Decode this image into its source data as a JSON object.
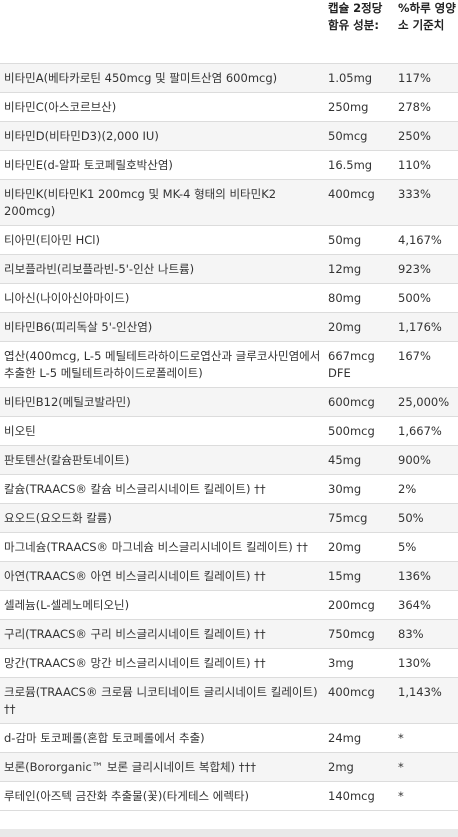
{
  "table": {
    "headers": [
      "",
      "캡슐 2정당 함유 성분:",
      "%하루 영양소 기준치"
    ],
    "rows": [
      {
        "name": "비타민A(베타카로틴 450mcg 및 팔미트산염 600mcg)",
        "amount": "1.05mg",
        "dv": "117%"
      },
      {
        "name": "비타민C(아스코르브산)",
        "amount": "250mg",
        "dv": "278%"
      },
      {
        "name": "비타민D(비타민D3)(2,000 IU)",
        "amount": "50mcg",
        "dv": "250%"
      },
      {
        "name": "비타민E(d-알파 토코페릴호박산염)",
        "amount": "16.5mg",
        "dv": "110%"
      },
      {
        "name": "비타민K(비타민K1 200mcg 및 MK-4 형태의 비타민K2 200mcg)",
        "amount": "400mcg",
        "dv": "333%"
      },
      {
        "name": "티아민(티아민 HCl)",
        "amount": "50mg",
        "dv": "4,167%"
      },
      {
        "name": "리보플라빈(리보플라빈-5'-인산 나트륨)",
        "amount": "12mg",
        "dv": "923%"
      },
      {
        "name": "니아신(나이아신아마이드)",
        "amount": "80mg",
        "dv": "500%"
      },
      {
        "name": "비타민B6(피리독살 5'-인산염)",
        "amount": "20mg",
        "dv": "1,176%"
      },
      {
        "name": "엽산(400mcg, L-5 메틸테트라하이드로엽산과 글루코사민염에서 추출한 L-5 메틸테트라하이드로폴레이트)",
        "amount": "667mcg DFE",
        "dv": "167%"
      },
      {
        "name": "비타민B12(메틸코발라민)",
        "amount": "600mcg",
        "dv": "25,000%"
      },
      {
        "name": "비오틴",
        "amount": "500mcg",
        "dv": "1,667%"
      },
      {
        "name": "판토텐산(칼슘판토네이트)",
        "amount": "45mg",
        "dv": "900%"
      },
      {
        "name": "칼슘(TRAACS® 칼슘 비스글리시네이트 킬레이트) ††",
        "amount": "30mg",
        "dv": "2%"
      },
      {
        "name": "요오드(요오드화 칼륨)",
        "amount": "75mcg",
        "dv": "50%"
      },
      {
        "name": "마그네슘(TRAACS® 마그네슘 비스글리시네이트 킬레이트) ††",
        "amount": "20mg",
        "dv": "5%"
      },
      {
        "name": "아연(TRAACS® 아연 비스글리시네이트 킬레이트) ††",
        "amount": "15mg",
        "dv": "136%"
      },
      {
        "name": "셀레늄(L-셀레노메티오닌)",
        "amount": "200mcg",
        "dv": "364%"
      },
      {
        "name": "구리(TRAACS® 구리 비스글리시네이트 킬레이트) ††",
        "amount": "750mcg",
        "dv": "83%"
      },
      {
        "name": "망간(TRAACS® 망간 비스글리시네이트 킬레이트) ††",
        "amount": "3mg",
        "dv": "130%"
      },
      {
        "name": "크로뮴(TRAACS® 크로뮴 니코티네이트 글리시네이트 킬레이트) ††",
        "amount": "400mcg",
        "dv": "1,143%"
      },
      {
        "name": "d-감마 토코페롤(혼합 토코페롤에서 추출)",
        "amount": "24mg",
        "dv": "*"
      },
      {
        "name": "보론(Bororganic™ 보론 글리시네이트 복합체) †††",
        "amount": "2mg",
        "dv": "*"
      },
      {
        "name": "루테인(아즈텍 금잔화 추출물(꽃)(타게테스 에렉타)",
        "amount": "140mcg",
        "dv": "*"
      }
    ]
  }
}
